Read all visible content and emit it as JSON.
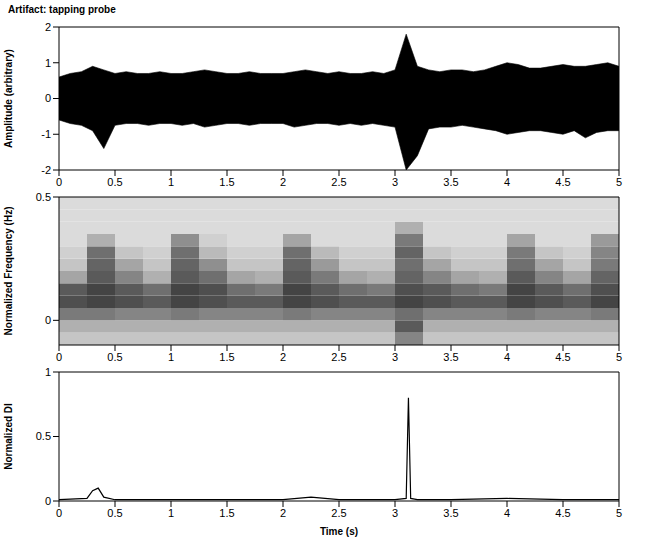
{
  "chart_data": [
    {
      "type": "area",
      "title": "Artifact: tapping probe",
      "y_label": "Amplitude (arbitrary)",
      "x": [
        0,
        0.1,
        0.2,
        0.3,
        0.4,
        0.5,
        0.6,
        0.7,
        0.8,
        0.9,
        1,
        1.1,
        1.2,
        1.3,
        1.4,
        1.5,
        1.6,
        1.7,
        1.8,
        1.9,
        2,
        2.1,
        2.2,
        2.3,
        2.4,
        2.5,
        2.6,
        2.7,
        2.8,
        2.9,
        3,
        3.1,
        3.2,
        3.3,
        3.4,
        3.5,
        3.6,
        3.7,
        3.8,
        3.9,
        4,
        4.1,
        4.2,
        4.3,
        4.4,
        4.5,
        4.6,
        4.7,
        4.8,
        4.9,
        5
      ],
      "max": [
        0.6,
        0.7,
        0.75,
        0.9,
        0.8,
        0.7,
        0.75,
        0.7,
        0.7,
        0.75,
        0.7,
        0.7,
        0.75,
        0.8,
        0.75,
        0.7,
        0.7,
        0.75,
        0.7,
        0.7,
        0.7,
        0.75,
        0.8,
        0.75,
        0.7,
        0.75,
        0.7,
        0.7,
        0.75,
        0.7,
        0.8,
        1.8,
        0.9,
        0.8,
        0.75,
        0.8,
        0.8,
        0.75,
        0.8,
        0.9,
        1.0,
        0.95,
        0.85,
        0.85,
        0.9,
        0.95,
        0.9,
        0.9,
        0.95,
        1.0,
        0.9
      ],
      "min": [
        -0.6,
        -0.7,
        -0.75,
        -0.9,
        -1.4,
        -0.75,
        -0.7,
        -0.7,
        -0.75,
        -0.7,
        -0.7,
        -0.75,
        -0.7,
        -0.8,
        -0.75,
        -0.7,
        -0.7,
        -0.75,
        -0.7,
        -0.7,
        -0.7,
        -0.8,
        -0.75,
        -0.7,
        -0.7,
        -0.75,
        -0.7,
        -0.75,
        -0.7,
        -0.75,
        -0.8,
        -2.0,
        -1.6,
        -0.85,
        -0.8,
        -0.8,
        -0.75,
        -0.8,
        -0.85,
        -0.9,
        -1.0,
        -0.95,
        -0.9,
        -0.9,
        -0.95,
        -1.0,
        -0.9,
        -1.1,
        -0.95,
        -0.9,
        -0.9
      ],
      "color": "#000000",
      "xlim": [
        0,
        5
      ],
      "xticks": [
        0,
        0.5,
        1,
        1.5,
        2,
        2.5,
        3,
        3.5,
        4,
        4.5,
        5
      ],
      "ylim": [
        -2,
        2
      ],
      "yticks": [
        -2,
        -1,
        0,
        1,
        2
      ]
    },
    {
      "type": "heatmap",
      "y_label": "Normalized Frequency (Hz)",
      "x_bins": [
        0,
        0.25,
        0.5,
        0.75,
        1,
        1.25,
        1.5,
        1.75,
        2,
        2.25,
        2.5,
        2.75,
        3,
        3.25,
        3.5,
        3.75,
        4,
        4.25,
        4.5,
        4.75,
        5
      ],
      "y_bins": [
        -0.1,
        -0.05,
        0,
        0.05,
        0.1,
        0.15,
        0.2,
        0.25,
        0.3,
        0.35,
        0.4,
        0.45,
        0.5
      ],
      "cells": [
        [
          0.2,
          0.2,
          0.2,
          0.2,
          0.2,
          0.2,
          0.2,
          0.2,
          0.2,
          0.2,
          0.2,
          0.2,
          0.5,
          0.2,
          0.2,
          0.2,
          0.2,
          0.2,
          0.2,
          0.2
        ],
        [
          0.3,
          0.3,
          0.3,
          0.3,
          0.3,
          0.3,
          0.3,
          0.3,
          0.3,
          0.3,
          0.3,
          0.3,
          0.7,
          0.3,
          0.3,
          0.3,
          0.3,
          0.3,
          0.3,
          0.3
        ],
        [
          0.55,
          0.55,
          0.5,
          0.5,
          0.55,
          0.5,
          0.5,
          0.5,
          0.55,
          0.5,
          0.5,
          0.5,
          0.6,
          0.5,
          0.5,
          0.5,
          0.55,
          0.5,
          0.5,
          0.55
        ],
        [
          0.75,
          0.8,
          0.75,
          0.7,
          0.8,
          0.75,
          0.7,
          0.7,
          0.8,
          0.75,
          0.7,
          0.7,
          0.8,
          0.75,
          0.7,
          0.7,
          0.8,
          0.75,
          0.7,
          0.8
        ],
        [
          0.7,
          0.8,
          0.7,
          0.6,
          0.8,
          0.75,
          0.6,
          0.55,
          0.8,
          0.7,
          0.6,
          0.55,
          0.75,
          0.7,
          0.6,
          0.55,
          0.8,
          0.7,
          0.6,
          0.75
        ],
        [
          0.35,
          0.7,
          0.5,
          0.3,
          0.7,
          0.6,
          0.35,
          0.3,
          0.7,
          0.55,
          0.35,
          0.3,
          0.65,
          0.5,
          0.35,
          0.3,
          0.7,
          0.5,
          0.35,
          0.65
        ],
        [
          0.2,
          0.65,
          0.35,
          0.2,
          0.65,
          0.45,
          0.2,
          0.2,
          0.65,
          0.4,
          0.2,
          0.2,
          0.6,
          0.35,
          0.2,
          0.2,
          0.6,
          0.35,
          0.2,
          0.55
        ],
        [
          0.15,
          0.6,
          0.2,
          0.15,
          0.6,
          0.25,
          0.15,
          0.15,
          0.6,
          0.25,
          0.15,
          0.15,
          0.65,
          0.2,
          0.15,
          0.15,
          0.55,
          0.2,
          0.15,
          0.5
        ],
        [
          0.1,
          0.3,
          0.1,
          0.1,
          0.45,
          0.15,
          0.1,
          0.1,
          0.35,
          0.1,
          0.1,
          0.1,
          0.55,
          0.1,
          0.1,
          0.1,
          0.35,
          0.1,
          0.1,
          0.4
        ],
        [
          0.1,
          0.1,
          0.1,
          0.1,
          0.1,
          0.1,
          0.1,
          0.1,
          0.1,
          0.1,
          0.1,
          0.1,
          0.3,
          0.1,
          0.1,
          0.1,
          0.1,
          0.1,
          0.1,
          0.1
        ],
        [
          0.1,
          0.1,
          0.1,
          0.1,
          0.1,
          0.1,
          0.1,
          0.1,
          0.1,
          0.1,
          0.1,
          0.1,
          0.1,
          0.1,
          0.1,
          0.1,
          0.1,
          0.1,
          0.1,
          0.1
        ],
        [
          0.1,
          0.1,
          0.1,
          0.1,
          0.1,
          0.1,
          0.1,
          0.1,
          0.1,
          0.1,
          0.1,
          0.1,
          0.1,
          0.1,
          0.1,
          0.1,
          0.1,
          0.1,
          0.1,
          0.1
        ]
      ],
      "xlim": [
        0,
        5
      ],
      "xticks": [
        0,
        0.5,
        1,
        1.5,
        2,
        2.5,
        3,
        3.5,
        4,
        4.5,
        5
      ],
      "ylim": [
        -0.1,
        0.5
      ],
      "yticks": [
        0,
        0.5
      ]
    },
    {
      "type": "line",
      "y_label": "Normalized DI",
      "x_label": "Time (s)",
      "x": [
        0,
        0.25,
        0.3,
        0.35,
        0.4,
        0.5,
        1,
        1.5,
        2,
        2.25,
        2.5,
        3,
        3.1,
        3.12,
        3.14,
        3.2,
        3.5,
        4,
        4.5,
        5
      ],
      "values": [
        0.01,
        0.02,
        0.08,
        0.1,
        0.03,
        0.01,
        0.01,
        0.01,
        0.01,
        0.03,
        0.01,
        0.01,
        0.02,
        0.8,
        0.02,
        0.01,
        0.01,
        0.02,
        0.01,
        0.01
      ],
      "color": "#000000",
      "xlim": [
        0,
        5
      ],
      "xticks": [
        0,
        0.5,
        1,
        1.5,
        2,
        2.5,
        3,
        3.5,
        4,
        4.5,
        5
      ],
      "ylim": [
        0,
        1
      ],
      "yticks": [
        0,
        0.5,
        1
      ]
    }
  ]
}
